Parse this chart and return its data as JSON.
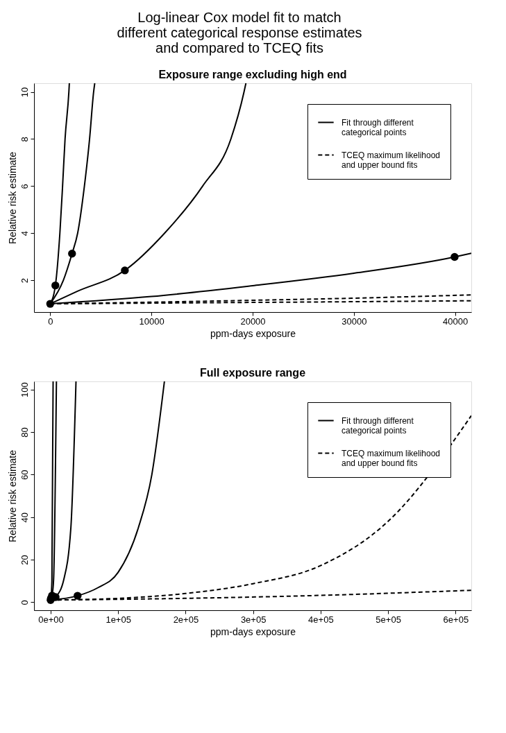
{
  "chart_data": [
    {
      "type": "line",
      "title": "Log-linear Cox model fit to match different categorical response estimates and compared to TCEQ fits",
      "subtitle": "Exposure range excluding high end",
      "xlabel": "ppm-days exposure",
      "ylabel": "Relative risk estimate",
      "xlim": [
        -1600,
        41600
      ],
      "ylim": [
        0.65,
        10.37
      ],
      "xticks": [
        0,
        10000,
        20000,
        30000,
        40000
      ],
      "yticks": [
        2,
        4,
        6,
        8,
        10
      ],
      "grid": false,
      "legend": "top right",
      "series": [
        {
          "name": "Fit through different categorical points",
          "color": "#000000",
          "line_style": "solid",
          "x": [
            0,
            511,
            955,
            1222,
            1467,
            1844,
            1890
          ],
          "values": [
            1,
            1.78,
            4,
            6,
            8,
            10,
            10.37
          ]
        },
        {
          "color": "#000000",
          "line_style": "solid",
          "x": [
            0,
            1300,
            2156,
            2711,
            3378,
            3889,
            4289,
            4400
          ],
          "values": [
            1,
            2,
            3.13,
            4,
            6,
            8,
            10,
            10.37
          ]
        },
        {
          "color": "#000000",
          "line_style": "solid",
          "x": [
            0,
            2664,
            7374,
            11300,
            15058,
            17847,
            19148,
            19334
          ],
          "values": [
            1,
            1.53,
            2.42,
            4,
            6,
            8,
            10,
            10.37
          ]
        },
        {
          "color": "#000000",
          "line_style": "solid",
          "x": [
            0,
            10000,
            20000,
            30000,
            39950,
            41600
          ],
          "values": [
            1,
            1.31,
            1.77,
            2.3,
            2.99,
            3.15
          ]
        },
        {
          "name": "TCEQ maximum likelihood and upper bound fits",
          "color": "#000000",
          "line_style": "dashed",
          "x": [
            0,
            10000,
            20000,
            30000,
            41600
          ],
          "values": [
            1,
            1.07,
            1.15,
            1.24,
            1.38
          ]
        },
        {
          "color": "#000000",
          "line_style": "dashed",
          "x": [
            0,
            10000,
            20000,
            30000,
            41600
          ],
          "values": [
            1,
            1.03,
            1.06,
            1.09,
            1.13
          ]
        },
        {
          "type": "scatter",
          "marker": "circle",
          "color": "#000000",
          "x": [
            0,
            511,
            2156,
            7374,
            39950
          ],
          "values": [
            1,
            1.78,
            3.13,
            2.42,
            2.99
          ]
        }
      ]
    },
    {
      "type": "line",
      "title": "Full exposure range",
      "xlabel": "ppm-days exposure",
      "ylabel": "Relative risk estimate",
      "xlim": [
        -24600,
        623300
      ],
      "ylim": [
        -3.8,
        103.8
      ],
      "xticks": [
        {
          "value": 0,
          "label": "0e+00"
        },
        {
          "value": 100000,
          "label": "1e+05"
        },
        {
          "value": 200000,
          "label": "2e+05"
        },
        {
          "value": 300000,
          "label": "3e+05"
        },
        {
          "value": 400000,
          "label": "4e+05"
        },
        {
          "value": 500000,
          "label": "5e+05"
        },
        {
          "value": 600000,
          "label": "6e+05"
        }
      ],
      "yticks": [
        0,
        20,
        40,
        60,
        80,
        100
      ],
      "grid": false,
      "legend": "top right",
      "series": [
        {
          "name": "Fit through different categorical points",
          "color": "#000000",
          "line_style": "solid",
          "x": [
            0,
            511,
            1890,
            3700
          ],
          "values": [
            1,
            1.8,
            10,
            103.8
          ]
        },
        {
          "color": "#000000",
          "line_style": "solid",
          "x": [
            0,
            2156,
            4400,
            8600
          ],
          "values": [
            1,
            3.1,
            10.4,
            103.8
          ]
        },
        {
          "color": "#000000",
          "line_style": "solid",
          "x": [
            0,
            7374,
            19334,
            30000,
            37600
          ],
          "values": [
            1,
            2.4,
            10.4,
            35,
            103.8
          ]
        },
        {
          "color": "#000000",
          "line_style": "solid",
          "x": [
            0,
            40000,
            70000,
            100000,
            130000,
            150000,
            168600
          ],
          "values": [
            1,
            3,
            6.8,
            14,
            35,
            60,
            103.8
          ]
        },
        {
          "name": "TCEQ maximum likelihood and upper bound fits",
          "color": "#000000",
          "line_style": "dashed",
          "x": [
            0,
            100000,
            200000,
            300000,
            400000,
            500000,
            623300
          ],
          "values": [
            1,
            1.8,
            4.1,
            8.7,
            17.2,
            38,
            87.7
          ]
        },
        {
          "color": "#000000",
          "line_style": "dashed",
          "x": [
            0,
            200000,
            400000,
            623300
          ],
          "values": [
            1,
            1.8,
            3.2,
            5.6
          ]
        },
        {
          "type": "scatter",
          "marker": "circle",
          "color": "#000000",
          "x": [
            0,
            511,
            2156,
            7374,
            39950
          ],
          "values": [
            1,
            1.8,
            3.1,
            2.4,
            3.0
          ]
        }
      ]
    }
  ]
}
